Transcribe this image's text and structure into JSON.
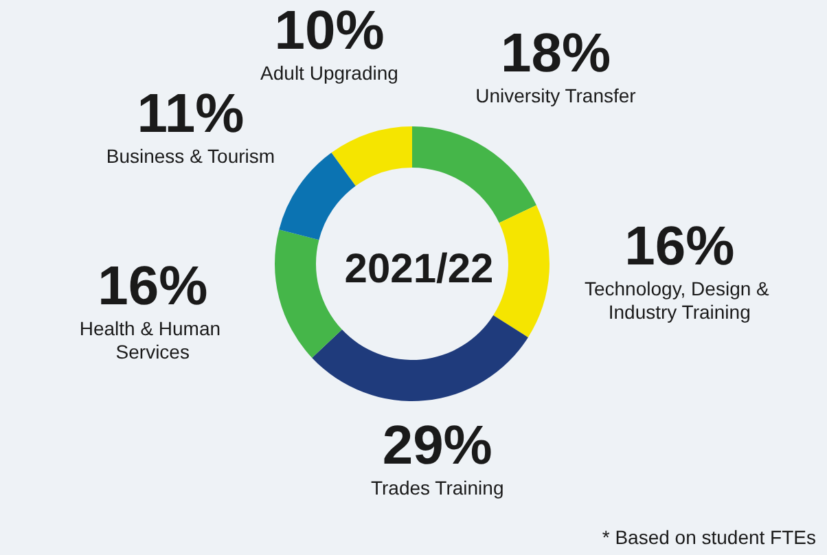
{
  "chart_data": {
    "type": "donut",
    "title": "2021/22",
    "categories": [
      "Adult Upgrading",
      "University Transfer",
      "Technology, Design & Industry Training",
      "Trades Training",
      "Health & Human Services",
      "Business & Tourism"
    ],
    "values": [
      10,
      18,
      16,
      29,
      16,
      11
    ],
    "value_labels": [
      "10%",
      "18%",
      "16%",
      "29%",
      "16%",
      "11%"
    ],
    "colors": [
      "#f5e500",
      "#45b649",
      "#f5e500",
      "#1f3b7c",
      "#45b649",
      "#0b73b2"
    ],
    "annotations": [
      "* Based on student FTEs"
    ],
    "legend": false
  }
}
